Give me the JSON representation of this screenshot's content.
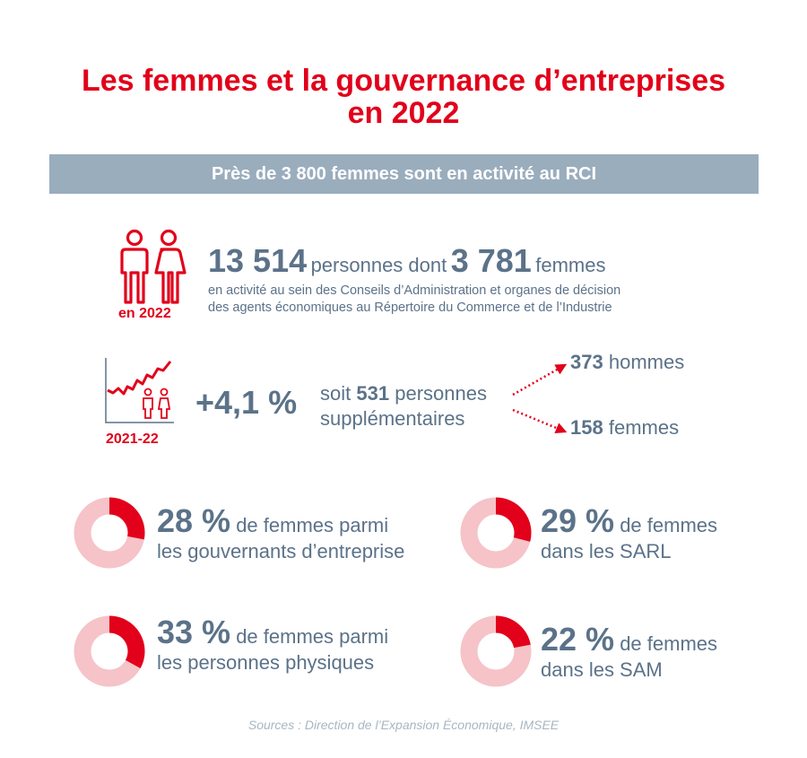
{
  "title": {
    "line1": "Les femmes et la gouvernance d’entreprises",
    "line2": "en 2022"
  },
  "banner": "Près de 3 800 femmes sont en activité au RCI",
  "block1": {
    "year_label": "en 2022",
    "total": "13 514",
    "text_persons": "personnes dont",
    "women": "3 781",
    "text_women": "femmes",
    "desc_line1": "en activité au sein des Conseils d’Administration et organes de décision",
    "desc_line2": "des agents économiques au Répertoire du Commerce et de l’Industrie"
  },
  "block2": {
    "year_label": "2021-22",
    "growth": "+4,1 %",
    "soit": "soit",
    "added": "531",
    "persons": "personnes",
    "supplementary": "supplémentaires",
    "men_value": "373",
    "men_label": "hommes",
    "women_value": "158",
    "women_label": "femmes"
  },
  "stats": [
    {
      "pct": "28 %",
      "text1": "de femmes parmi",
      "text2": "les gouvernants d’entreprise"
    },
    {
      "pct": "29 %",
      "text1": "de femmes",
      "text2": "dans les SARL"
    },
    {
      "pct": "33 %",
      "text1": "de femmes parmi",
      "text2": "les personnes physiques"
    },
    {
      "pct": "22 %",
      "text1": "de femmes",
      "text2": "dans les SAM"
    }
  ],
  "chart_data": [
    {
      "type": "pie",
      "categories": [
        "femmes",
        ""
      ],
      "values": [
        28,
        72
      ]
    },
    {
      "type": "pie",
      "categories": [
        "femmes",
        ""
      ],
      "values": [
        29,
        71
      ]
    },
    {
      "type": "pie",
      "categories": [
        "femmes",
        ""
      ],
      "values": [
        33,
        67
      ]
    },
    {
      "type": "pie",
      "categories": [
        "femmes",
        ""
      ],
      "values": [
        22,
        78
      ]
    }
  ],
  "colors": {
    "accent": "#e2001a",
    "ring": "#f5c3c8",
    "text": "#5b7289",
    "banner": "#9aadbd"
  },
  "source": "Sources : Direction de l’Expansion Économique, IMSEE"
}
